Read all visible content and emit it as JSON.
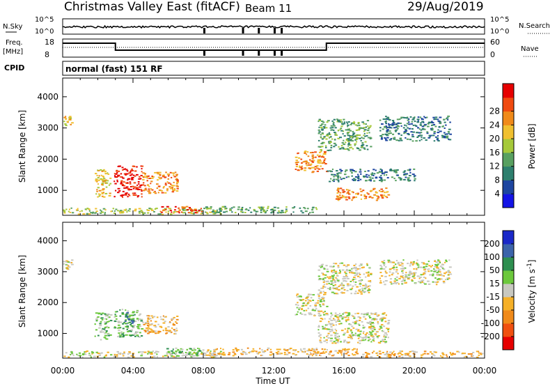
{
  "header": {
    "station": "Christmas Valley East (fitACF)",
    "beam": "Beam 11",
    "date": "29/Aug/2019"
  },
  "sky_panel": {
    "left_label": "N.Sky",
    "right_label": "N.Search",
    "left_ticks": [
      "10^5",
      "10^0"
    ],
    "right_ticks": [
      "10^5",
      "10^0"
    ]
  },
  "freq_panel": {
    "left_label_1": "Freq.",
    "left_label_2": "[MHz]",
    "right_label": "Nave",
    "left_ticks": [
      "18",
      "8"
    ],
    "right_ticks": [
      "60",
      "0"
    ]
  },
  "cpid": {
    "label": "CPID",
    "mode": "normal (fast) 151 RF"
  },
  "colors": {
    "power_scale": [
      "#1414e6",
      "#1e46a0",
      "#2e7f6e",
      "#58a060",
      "#a6c93a",
      "#f0c030",
      "#f08a1a",
      "#f04a10",
      "#e60000"
    ],
    "velocity_scale": [
      "#e60000",
      "#f05010",
      "#f08a1a",
      "#f5b028",
      "#c8c8c0",
      "#6cc83c",
      "#2e8f50",
      "#3c64aa",
      "#1a28c8"
    ]
  },
  "chart_data": [
    {
      "type": "heatmap",
      "name": "power",
      "ylabel": "Slant Range [km]",
      "yticks": [
        "1000",
        "2000",
        "3000",
        "4000"
      ],
      "ylim": [
        200,
        4600
      ],
      "xlim": [
        0,
        24
      ],
      "colorbar": {
        "label": "Power [dB]",
        "ticks": [
          "4",
          "8",
          "12",
          "16",
          "20",
          "24",
          "28"
        ]
      },
      "regions": [
        {
          "t0": 1.8,
          "t1": 2.7,
          "r0": 800,
          "r1": 1700,
          "level": 5
        },
        {
          "t0": 2.9,
          "t1": 4.5,
          "r0": 800,
          "r1": 1800,
          "level": 8
        },
        {
          "t0": 4.5,
          "t1": 6.5,
          "r0": 900,
          "r1": 1600,
          "level": 6
        },
        {
          "t0": 0.0,
          "t1": 9.0,
          "r0": 250,
          "r1": 450,
          "level": 4
        },
        {
          "t0": 5.5,
          "t1": 8.0,
          "r0": 300,
          "r1": 500,
          "level": 7
        },
        {
          "t0": 8.0,
          "t1": 14.5,
          "r0": 300,
          "r1": 500,
          "level": 3
        },
        {
          "t0": 13.2,
          "t1": 15.0,
          "r0": 1600,
          "r1": 2300,
          "level": 6
        },
        {
          "t0": 15.5,
          "t1": 18.5,
          "r0": 700,
          "r1": 1100,
          "level": 6
        },
        {
          "t0": 14.5,
          "t1": 17.5,
          "r0": 2300,
          "r1": 3300,
          "level": 3
        },
        {
          "t0": 18.0,
          "t1": 22.0,
          "r0": 2600,
          "r1": 3400,
          "level": 2
        },
        {
          "t0": 0.0,
          "t1": 0.5,
          "r0": 3100,
          "r1": 3400,
          "level": 5
        },
        {
          "t0": 15.0,
          "t1": 20.0,
          "r0": 1300,
          "r1": 1700,
          "level": 2
        }
      ]
    },
    {
      "type": "heatmap",
      "name": "velocity",
      "ylabel": "Slant Range [km]",
      "yticks": [
        "1000",
        "2000",
        "3000",
        "4000"
      ],
      "ylim": [
        200,
        4600
      ],
      "xlim": [
        0,
        24
      ],
      "xticks": [
        "00:00",
        "04:00",
        "08:00",
        "12:00",
        "16:00",
        "20:00",
        "00:00"
      ],
      "xlabel": "Time UT",
      "colorbar": {
        "label": "Velocity [m s^-1]",
        "ticks": [
          "-200",
          "-100",
          "-50",
          "-15",
          "15",
          "50",
          "100",
          "200"
        ]
      },
      "regions": [
        {
          "t0": 1.8,
          "t1": 2.7,
          "r0": 800,
          "r1": 1700,
          "level": 5
        },
        {
          "t0": 2.9,
          "t1": 4.5,
          "r0": 900,
          "r1": 1800,
          "level": 5
        },
        {
          "t0": 3.5,
          "t1": 4.2,
          "r0": 1200,
          "r1": 1700,
          "level": 6
        },
        {
          "t0": 4.5,
          "t1": 6.5,
          "r0": 1000,
          "r1": 1600,
          "level": 3
        },
        {
          "t0": 0.0,
          "t1": 9.0,
          "r0": 250,
          "r1": 450,
          "level": 4
        },
        {
          "t0": 5.5,
          "t1": 8.0,
          "r0": 300,
          "r1": 550,
          "level": 5
        },
        {
          "t0": 8.0,
          "t1": 17.0,
          "r0": 300,
          "r1": 550,
          "level": 3
        },
        {
          "t0": 17.0,
          "t1": 24.0,
          "r0": 250,
          "r1": 450,
          "level": 3
        },
        {
          "t0": 13.2,
          "t1": 15.0,
          "r0": 1600,
          "r1": 2300,
          "level": 4
        },
        {
          "t0": 14.5,
          "t1": 18.5,
          "r0": 700,
          "r1": 1700,
          "level": 4
        },
        {
          "t0": 14.5,
          "t1": 17.5,
          "r0": 2300,
          "r1": 3300,
          "level": 4
        },
        {
          "t0": 18.0,
          "t1": 22.0,
          "r0": 2600,
          "r1": 3400,
          "level": 4
        },
        {
          "t0": 0.0,
          "t1": 0.5,
          "r0": 3100,
          "r1": 3400,
          "level": 4
        }
      ]
    }
  ]
}
